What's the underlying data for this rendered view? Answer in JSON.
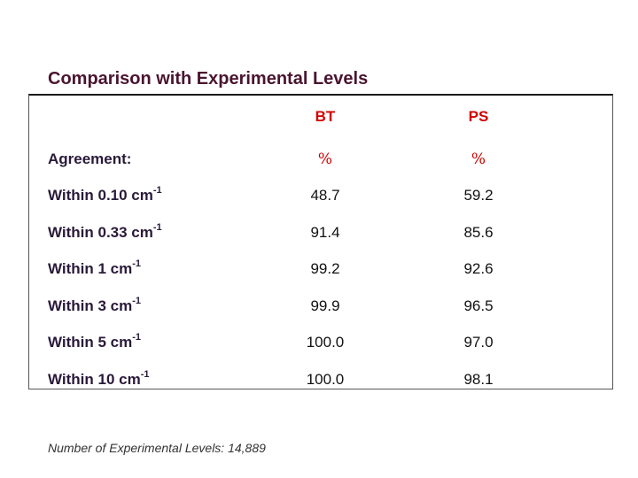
{
  "title": "Comparison with Experimental Levels",
  "table": {
    "columns": [
      "BT",
      "PS"
    ],
    "header_row": {
      "label": "Agreement:",
      "bt": "%",
      "ps": "%"
    },
    "rows": [
      {
        "label": "Within 0.10 cm",
        "exponent": "-1",
        "bt": "48.7",
        "ps": "59.2"
      },
      {
        "label": "Within 0.33 cm",
        "exponent": "-1",
        "bt": "91.4",
        "ps": "85.6"
      },
      {
        "label": "Within 1 cm",
        "exponent": "-1",
        "bt": "99.2",
        "ps": "92.6"
      },
      {
        "label": "Within 3 cm",
        "exponent": "-1",
        "bt": "99.9",
        "ps": "96.5"
      },
      {
        "label": "Within 5 cm",
        "exponent": "-1",
        "bt": "100.0",
        "ps": "97.0"
      },
      {
        "label": "Within 10 cm",
        "exponent": "-1",
        "bt": "100.0",
        "ps": "98.1"
      }
    ]
  },
  "footnote": "Number of Experimental Levels: 14,889",
  "colors": {
    "title": "#4a1530",
    "header": "#d10000",
    "label": "#2a1a3a"
  }
}
